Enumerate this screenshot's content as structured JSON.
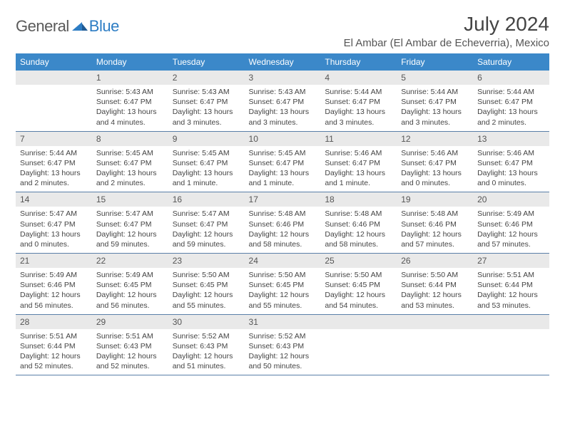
{
  "brand": {
    "part1": "General",
    "part2": "Blue"
  },
  "title": "July 2024",
  "location": "El Ambar (El Ambar de Echeverria), Mexico",
  "header_bg": "#3b88c9",
  "header_fg": "#ffffff",
  "daynum_bg": "#e9e9e9",
  "row_border": "#5a7fa8",
  "columns": [
    "Sunday",
    "Monday",
    "Tuesday",
    "Wednesday",
    "Thursday",
    "Friday",
    "Saturday"
  ],
  "weeks": [
    [
      {
        "n": "",
        "sr": "",
        "ss": "",
        "dl": ""
      },
      {
        "n": "1",
        "sr": "5:43 AM",
        "ss": "6:47 PM",
        "dl": "13 hours and 4 minutes."
      },
      {
        "n": "2",
        "sr": "5:43 AM",
        "ss": "6:47 PM",
        "dl": "13 hours and 3 minutes."
      },
      {
        "n": "3",
        "sr": "5:43 AM",
        "ss": "6:47 PM",
        "dl": "13 hours and 3 minutes."
      },
      {
        "n": "4",
        "sr": "5:44 AM",
        "ss": "6:47 PM",
        "dl": "13 hours and 3 minutes."
      },
      {
        "n": "5",
        "sr": "5:44 AM",
        "ss": "6:47 PM",
        "dl": "13 hours and 3 minutes."
      },
      {
        "n": "6",
        "sr": "5:44 AM",
        "ss": "6:47 PM",
        "dl": "13 hours and 2 minutes."
      }
    ],
    [
      {
        "n": "7",
        "sr": "5:44 AM",
        "ss": "6:47 PM",
        "dl": "13 hours and 2 minutes."
      },
      {
        "n": "8",
        "sr": "5:45 AM",
        "ss": "6:47 PM",
        "dl": "13 hours and 2 minutes."
      },
      {
        "n": "9",
        "sr": "5:45 AM",
        "ss": "6:47 PM",
        "dl": "13 hours and 1 minute."
      },
      {
        "n": "10",
        "sr": "5:45 AM",
        "ss": "6:47 PM",
        "dl": "13 hours and 1 minute."
      },
      {
        "n": "11",
        "sr": "5:46 AM",
        "ss": "6:47 PM",
        "dl": "13 hours and 1 minute."
      },
      {
        "n": "12",
        "sr": "5:46 AM",
        "ss": "6:47 PM",
        "dl": "13 hours and 0 minutes."
      },
      {
        "n": "13",
        "sr": "5:46 AM",
        "ss": "6:47 PM",
        "dl": "13 hours and 0 minutes."
      }
    ],
    [
      {
        "n": "14",
        "sr": "5:47 AM",
        "ss": "6:47 PM",
        "dl": "13 hours and 0 minutes."
      },
      {
        "n": "15",
        "sr": "5:47 AM",
        "ss": "6:47 PM",
        "dl": "12 hours and 59 minutes."
      },
      {
        "n": "16",
        "sr": "5:47 AM",
        "ss": "6:47 PM",
        "dl": "12 hours and 59 minutes."
      },
      {
        "n": "17",
        "sr": "5:48 AM",
        "ss": "6:46 PM",
        "dl": "12 hours and 58 minutes."
      },
      {
        "n": "18",
        "sr": "5:48 AM",
        "ss": "6:46 PM",
        "dl": "12 hours and 58 minutes."
      },
      {
        "n": "19",
        "sr": "5:48 AM",
        "ss": "6:46 PM",
        "dl": "12 hours and 57 minutes."
      },
      {
        "n": "20",
        "sr": "5:49 AM",
        "ss": "6:46 PM",
        "dl": "12 hours and 57 minutes."
      }
    ],
    [
      {
        "n": "21",
        "sr": "5:49 AM",
        "ss": "6:46 PM",
        "dl": "12 hours and 56 minutes."
      },
      {
        "n": "22",
        "sr": "5:49 AM",
        "ss": "6:45 PM",
        "dl": "12 hours and 56 minutes."
      },
      {
        "n": "23",
        "sr": "5:50 AM",
        "ss": "6:45 PM",
        "dl": "12 hours and 55 minutes."
      },
      {
        "n": "24",
        "sr": "5:50 AM",
        "ss": "6:45 PM",
        "dl": "12 hours and 55 minutes."
      },
      {
        "n": "25",
        "sr": "5:50 AM",
        "ss": "6:45 PM",
        "dl": "12 hours and 54 minutes."
      },
      {
        "n": "26",
        "sr": "5:50 AM",
        "ss": "6:44 PM",
        "dl": "12 hours and 53 minutes."
      },
      {
        "n": "27",
        "sr": "5:51 AM",
        "ss": "6:44 PM",
        "dl": "12 hours and 53 minutes."
      }
    ],
    [
      {
        "n": "28",
        "sr": "5:51 AM",
        "ss": "6:44 PM",
        "dl": "12 hours and 52 minutes."
      },
      {
        "n": "29",
        "sr": "5:51 AM",
        "ss": "6:43 PM",
        "dl": "12 hours and 52 minutes."
      },
      {
        "n": "30",
        "sr": "5:52 AM",
        "ss": "6:43 PM",
        "dl": "12 hours and 51 minutes."
      },
      {
        "n": "31",
        "sr": "5:52 AM",
        "ss": "6:43 PM",
        "dl": "12 hours and 50 minutes."
      },
      {
        "n": "",
        "sr": "",
        "ss": "",
        "dl": ""
      },
      {
        "n": "",
        "sr": "",
        "ss": "",
        "dl": ""
      },
      {
        "n": "",
        "sr": "",
        "ss": "",
        "dl": ""
      }
    ]
  ],
  "labels": {
    "sunrise": "Sunrise:",
    "sunset": "Sunset:",
    "daylight": "Daylight:"
  }
}
